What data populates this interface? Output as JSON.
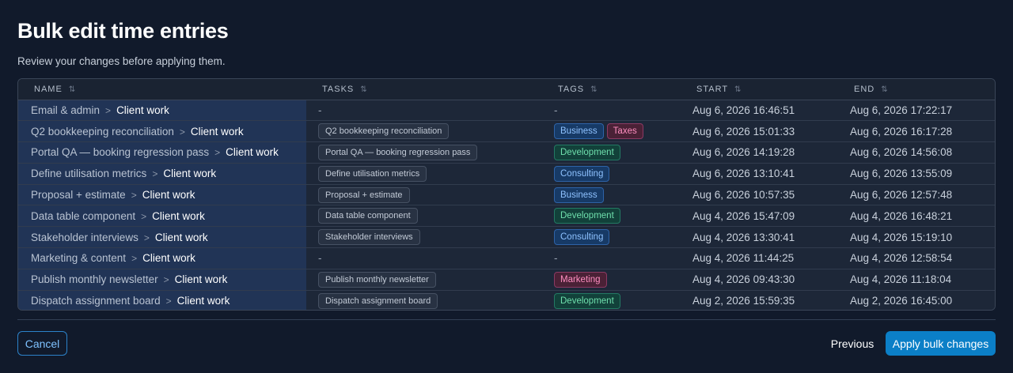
{
  "header": {
    "title": "Bulk edit time entries",
    "subtitle": "Review your changes before applying them."
  },
  "table": {
    "columns": [
      "NAME",
      "TASKS",
      "TAGS",
      "START",
      "END"
    ],
    "sort_icon": "sort-arrows-icon",
    "separator": ">",
    "rows": [
      {
        "name": "Email & admin",
        "project": "Client work",
        "task": "-",
        "tags": [],
        "start": "Aug 6, 2026 16:46:51",
        "end": "Aug 6, 2026 17:22:17"
      },
      {
        "name": "Q2 bookkeeping reconciliation",
        "project": "Client work",
        "task": "Q2 bookkeeping reconciliation",
        "tags": [
          {
            "label": "Business",
            "color": "blue"
          },
          {
            "label": "Taxes",
            "color": "pink"
          }
        ],
        "start": "Aug 6, 2026 15:01:33",
        "end": "Aug 6, 2026 16:17:28"
      },
      {
        "name": "Portal QA — booking regression pass",
        "project": "Client work",
        "task": "Portal QA — booking regression pass",
        "tags": [
          {
            "label": "Development",
            "color": "green"
          }
        ],
        "start": "Aug 6, 2026 14:19:28",
        "end": "Aug 6, 2026 14:56:08"
      },
      {
        "name": "Define utilisation metrics",
        "project": "Client work",
        "task": "Define utilisation metrics",
        "tags": [
          {
            "label": "Consulting",
            "color": "blue"
          }
        ],
        "start": "Aug 6, 2026 13:10:41",
        "end": "Aug 6, 2026 13:55:09"
      },
      {
        "name": "Proposal + estimate",
        "project": "Client work",
        "task": "Proposal + estimate",
        "tags": [
          {
            "label": "Business",
            "color": "blue"
          }
        ],
        "start": "Aug 6, 2026 10:57:35",
        "end": "Aug 6, 2026 12:57:48"
      },
      {
        "name": "Data table component",
        "project": "Client work",
        "task": "Data table component",
        "tags": [
          {
            "label": "Development",
            "color": "green"
          }
        ],
        "start": "Aug 4, 2026 15:47:09",
        "end": "Aug 4, 2026 16:48:21"
      },
      {
        "name": "Stakeholder interviews",
        "project": "Client work",
        "task": "Stakeholder interviews",
        "tags": [
          {
            "label": "Consulting",
            "color": "blue"
          }
        ],
        "start": "Aug 4, 2026 13:30:41",
        "end": "Aug 4, 2026 15:19:10"
      },
      {
        "name": "Marketing & content",
        "project": "Client work",
        "task": "-",
        "tags": [],
        "start": "Aug 4, 2026 11:44:25",
        "end": "Aug 4, 2026 12:58:54"
      },
      {
        "name": "Publish monthly newsletter",
        "project": "Client work",
        "task": "Publish monthly newsletter",
        "tags": [
          {
            "label": "Marketing",
            "color": "pink"
          }
        ],
        "start": "Aug 4, 2026 09:43:30",
        "end": "Aug 4, 2026 11:18:04"
      },
      {
        "name": "Dispatch assignment board",
        "project": "Client work",
        "task": "Dispatch assignment board",
        "tags": [
          {
            "label": "Development",
            "color": "green"
          }
        ],
        "start": "Aug 2, 2026 15:59:35",
        "end": "Aug 2, 2026 16:45:00"
      }
    ]
  },
  "footer": {
    "cancel_label": "Cancel",
    "previous_label": "Previous",
    "apply_label": "Apply bulk changes"
  },
  "colors": {
    "background": "#111a2b",
    "accent": "#0b7fc7",
    "name_column": "#213456"
  }
}
